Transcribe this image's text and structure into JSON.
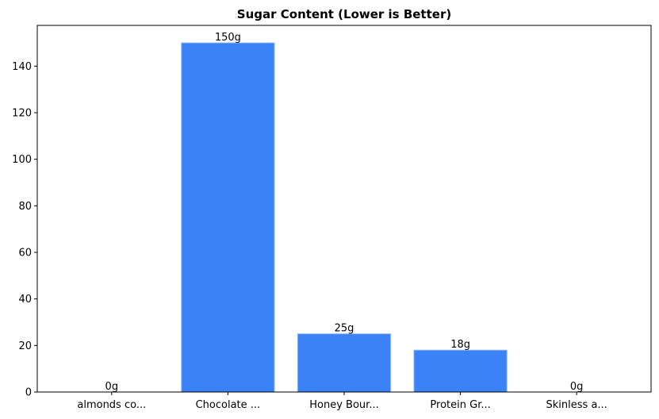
{
  "chart_data": {
    "type": "bar",
    "title": "Sugar Content (Lower is Better)",
    "categories": [
      "almonds co...",
      "Chocolate ...",
      "Honey Bour...",
      "Protein Gr...",
      "Skinless a..."
    ],
    "values": [
      0,
      150,
      25,
      18,
      0
    ],
    "value_labels": [
      "0g",
      "150g",
      "25g",
      "18g",
      "0g"
    ],
    "color": "#3b82f6",
    "ylim": [
      0,
      157.5
    ],
    "yticks": [
      0,
      20,
      40,
      60,
      80,
      100,
      120,
      140
    ]
  }
}
